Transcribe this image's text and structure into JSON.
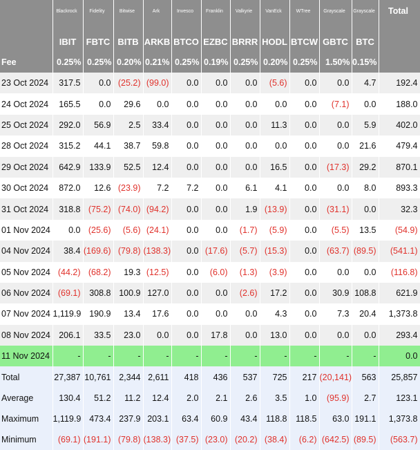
{
  "header": {
    "issuers": [
      "Blackrock",
      "Fidelity",
      "Bitwise",
      "Ark",
      "Invesco",
      "Franklin",
      "Valkyrie",
      "VanEck",
      "WTree",
      "Grayscale",
      "Grayscale"
    ],
    "total_label": "Total",
    "tickers": [
      "IBIT",
      "FBTC",
      "BITB",
      "ARKB",
      "BTCO",
      "EZBC",
      "BRRR",
      "HODL",
      "BTCW",
      "GBTC",
      "BTC"
    ],
    "fee_label": "Fee",
    "fees": [
      "0.25%",
      "0.25%",
      "0.20%",
      "0.21%",
      "0.25%",
      "0.19%",
      "0.25%",
      "0.20%",
      "0.25%",
      "1.50%",
      "0.15%"
    ]
  },
  "rows": [
    {
      "date": "23 Oct 2024",
      "values": [
        "317.5",
        "0.0",
        "(25.2)",
        "(99.0)",
        "0.0",
        "0.0",
        "0.0",
        "(5.6)",
        "0.0",
        "0.0",
        "4.7",
        "192.4"
      ]
    },
    {
      "date": "24 Oct 2024",
      "values": [
        "165.5",
        "0.0",
        "29.6",
        "0.0",
        "0.0",
        "0.0",
        "0.0",
        "0.0",
        "0.0",
        "(7.1)",
        "0.0",
        "188.0"
      ]
    },
    {
      "date": "25 Oct 2024",
      "values": [
        "292.0",
        "56.9",
        "2.5",
        "33.4",
        "0.0",
        "0.0",
        "0.0",
        "11.3",
        "0.0",
        "0.0",
        "5.9",
        "402.0"
      ]
    },
    {
      "date": "28 Oct 2024",
      "values": [
        "315.2",
        "44.1",
        "38.7",
        "59.8",
        "0.0",
        "0.0",
        "0.0",
        "0.0",
        "0.0",
        "0.0",
        "21.6",
        "479.4"
      ]
    },
    {
      "date": "29 Oct 2024",
      "values": [
        "642.9",
        "133.9",
        "52.5",
        "12.4",
        "0.0",
        "0.0",
        "0.0",
        "16.5",
        "0.0",
        "(17.3)",
        "29.2",
        "870.1"
      ]
    },
    {
      "date": "30 Oct 2024",
      "values": [
        "872.0",
        "12.6",
        "(23.9)",
        "7.2",
        "7.2",
        "0.0",
        "6.1",
        "4.1",
        "0.0",
        "0.0",
        "8.0",
        "893.3"
      ]
    },
    {
      "date": "31 Oct 2024",
      "values": [
        "318.8",
        "(75.2)",
        "(74.0)",
        "(94.2)",
        "0.0",
        "0.0",
        "1.9",
        "(13.9)",
        "0.0",
        "(31.1)",
        "0.0",
        "32.3"
      ]
    },
    {
      "date": "01 Nov 2024",
      "values": [
        "0.0",
        "(25.6)",
        "(5.6)",
        "(24.1)",
        "0.0",
        "0.0",
        "(1.7)",
        "(5.9)",
        "0.0",
        "(5.5)",
        "13.5",
        "(54.9)"
      ]
    },
    {
      "date": "04 Nov 2024",
      "values": [
        "38.4",
        "(169.6)",
        "(79.8)",
        "(138.3)",
        "0.0",
        "(17.6)",
        "(5.7)",
        "(15.3)",
        "0.0",
        "(63.7)",
        "(89.5)",
        "(541.1)"
      ]
    },
    {
      "date": "05 Nov 2024",
      "values": [
        "(44.2)",
        "(68.2)",
        "19.3",
        "(12.5)",
        "0.0",
        "(6.0)",
        "(1.3)",
        "(3.9)",
        "0.0",
        "0.0",
        "0.0",
        "(116.8)"
      ]
    },
    {
      "date": "06 Nov 2024",
      "values": [
        "(69.1)",
        "308.8",
        "100.9",
        "127.0",
        "0.0",
        "0.0",
        "(2.6)",
        "17.2",
        "0.0",
        "30.9",
        "108.8",
        "621.9"
      ]
    },
    {
      "date": "07 Nov 2024",
      "values": [
        "1,119.9",
        "190.9",
        "13.4",
        "17.6",
        "0.0",
        "0.0",
        "0.0",
        "4.3",
        "0.0",
        "7.3",
        "20.4",
        "1,373.8"
      ]
    },
    {
      "date": "08 Nov 2024",
      "values": [
        "206.1",
        "33.5",
        "23.0",
        "0.0",
        "0.0",
        "17.8",
        "0.0",
        "13.0",
        "0.0",
        "0.0",
        "0.0",
        "293.4"
      ]
    },
    {
      "date": "11 Nov 2024",
      "highlight": true,
      "values": [
        "-",
        "-",
        "-",
        "-",
        "-",
        "-",
        "-",
        "-",
        "-",
        "-",
        "-",
        "0.0"
      ]
    }
  ],
  "summary": [
    {
      "label": "Total",
      "values": [
        "27,387",
        "10,761",
        "2,344",
        "2,611",
        "418",
        "436",
        "537",
        "725",
        "217",
        "(20,141)",
        "563",
        "25,857"
      ]
    },
    {
      "label": "Average",
      "values": [
        "130.4",
        "51.2",
        "11.2",
        "12.4",
        "2.0",
        "2.1",
        "2.6",
        "3.5",
        "1.0",
        "(95.9)",
        "2.7",
        "123.1"
      ]
    },
    {
      "label": "Maximum",
      "values": [
        "1,119.9",
        "473.4",
        "237.9",
        "203.1",
        "63.4",
        "60.9",
        "43.4",
        "118.8",
        "118.5",
        "63.0",
        "191.1",
        "1,373.8"
      ]
    },
    {
      "label": "Minimum",
      "values": [
        "(69.1)",
        "(191.1)",
        "(79.8)",
        "(138.3)",
        "(37.5)",
        "(23.0)",
        "(20.2)",
        "(38.4)",
        "(6.2)",
        "(642.5)",
        "(89.5)",
        "(563.7)"
      ]
    }
  ]
}
